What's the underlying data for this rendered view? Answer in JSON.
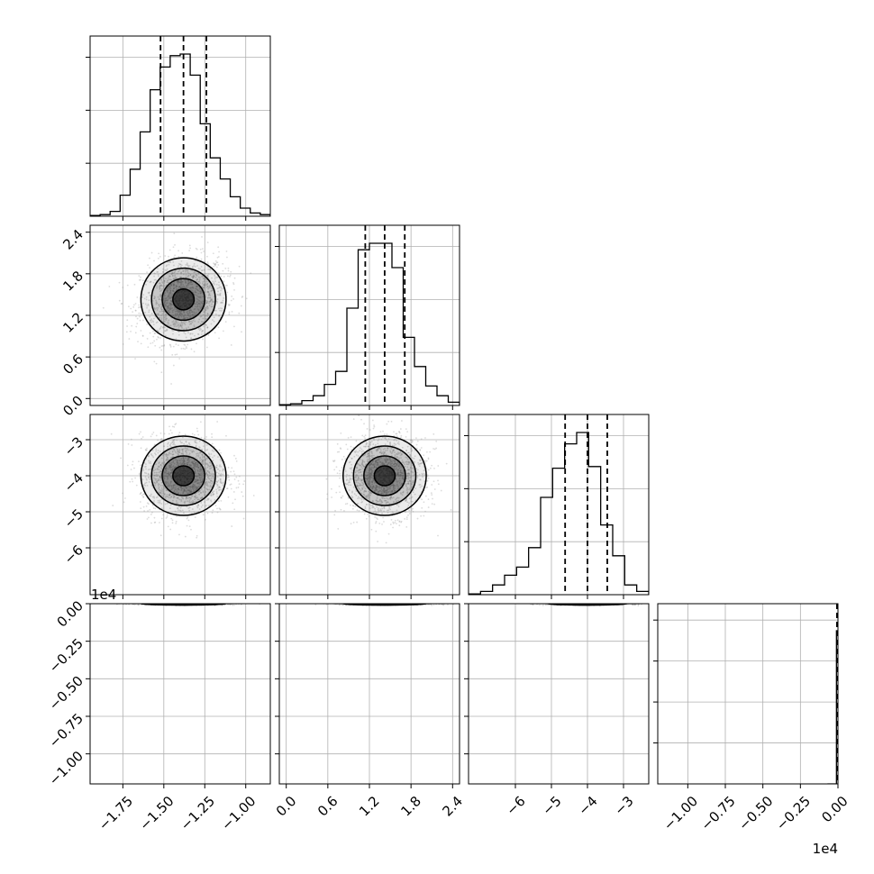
{
  "chart_data": {
    "type": "corner",
    "grid": true,
    "legend": "none",
    "colors": {
      "line": "#000000",
      "grid": "#b0b0b0",
      "points": "#9a9a9a"
    },
    "params": [
      {
        "range": [
          -1.95,
          -0.85
        ],
        "ticks": [
          -1.75,
          -1.5,
          -1.25,
          -1.0
        ],
        "tick_labels": [
          "−1.75",
          "−1.50",
          "−1.25",
          "−1.00"
        ],
        "quantiles": [
          -1.52,
          -1.38,
          -1.24
        ],
        "hist": [
          0.005,
          0.01,
          0.03,
          0.13,
          0.29,
          0.52,
          0.78,
          0.92,
          0.99,
          1.0,
          0.87,
          0.57,
          0.36,
          0.23,
          0.12,
          0.05,
          0.02,
          0.01
        ]
      },
      {
        "range": [
          -0.1,
          2.5
        ],
        "ticks": [
          0.0,
          0.6,
          1.2,
          1.8,
          2.4
        ],
        "tick_labels": [
          "0.0",
          "0.6",
          "1.2",
          "1.8",
          "2.4"
        ],
        "quantiles": [
          1.14,
          1.42,
          1.71
        ],
        "hist": [
          0.005,
          0.01,
          0.03,
          0.06,
          0.13,
          0.21,
          0.6,
          0.96,
          1.0,
          1.0,
          0.85,
          0.42,
          0.24,
          0.12,
          0.06,
          0.02
        ]
      },
      {
        "range": [
          -7.3,
          -2.3
        ],
        "ticks": [
          -6,
          -5,
          -4,
          -3
        ],
        "tick_labels": [
          "−6",
          "−5",
          "−4",
          "−3"
        ],
        "quantiles": [
          -4.62,
          -4.0,
          -3.45
        ],
        "hist": [
          0.005,
          0.02,
          0.06,
          0.12,
          0.17,
          0.29,
          0.6,
          0.78,
          0.93,
          1.0,
          0.79,
          0.43,
          0.24,
          0.06,
          0.02
        ]
      },
      {
        "range": [
          -1.2,
          0.0
        ],
        "ticks": [
          -1.0,
          -0.75,
          -0.5,
          -0.25,
          0.0
        ],
        "tick_labels": [
          "−1.00",
          "−0.75",
          "−0.50",
          "−0.25",
          "0.00"
        ],
        "quantiles": [
          -0.0025,
          0.0,
          0.0
        ],
        "hist_y_ticks": 4,
        "bar_x": -0.01,
        "bar_height": 0.85
      }
    ],
    "offset_text": {
      "row3_y": "1e4",
      "col3_x": "1e4"
    },
    "pairs": [
      {
        "row": 1,
        "col": 0,
        "center": [
          -1.38,
          1.43
        ],
        "sd": [
          0.13,
          0.3
        ],
        "corr": 0.15
      },
      {
        "row": 2,
        "col": 0,
        "center": [
          -1.38,
          -4.0
        ],
        "sd": [
          0.13,
          0.55
        ],
        "corr": 0.0
      },
      {
        "row": 2,
        "col": 1,
        "center": [
          1.42,
          -4.0
        ],
        "sd": [
          0.3,
          0.55
        ],
        "corr": 0.0
      },
      {
        "row": 3,
        "col": 0,
        "center": [
          -1.38,
          -0.001
        ],
        "sd": [
          0.13,
          0.004
        ],
        "corr": 0.0
      },
      {
        "row": 3,
        "col": 1,
        "center": [
          1.42,
          -0.001
        ],
        "sd": [
          0.3,
          0.004
        ],
        "corr": 0.0
      },
      {
        "row": 3,
        "col": 2,
        "center": [
          -4.0,
          -0.001
        ],
        "sd": [
          0.55,
          0.004
        ],
        "corr": 0.0
      }
    ]
  }
}
